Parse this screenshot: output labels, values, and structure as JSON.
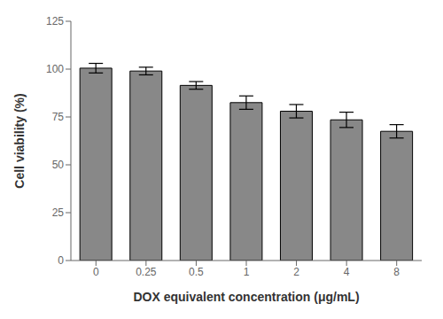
{
  "chart_data": {
    "type": "bar",
    "categories": [
      "0",
      "0.25",
      "0.5",
      "1",
      "2",
      "4",
      "8"
    ],
    "values": [
      100.5,
      99.0,
      91.5,
      82.5,
      78.0,
      73.5,
      67.5
    ],
    "errors": [
      2.5,
      2.0,
      2.0,
      3.5,
      3.5,
      4.0,
      3.5
    ],
    "xlabel": "DOX equivalent concentration (μg/mL)",
    "ylabel": "Cell viability (%)",
    "ylim": [
      0,
      125
    ],
    "yticks": [
      0,
      25,
      50,
      75,
      100,
      125
    ],
    "color": "#888888",
    "grid": false
  }
}
